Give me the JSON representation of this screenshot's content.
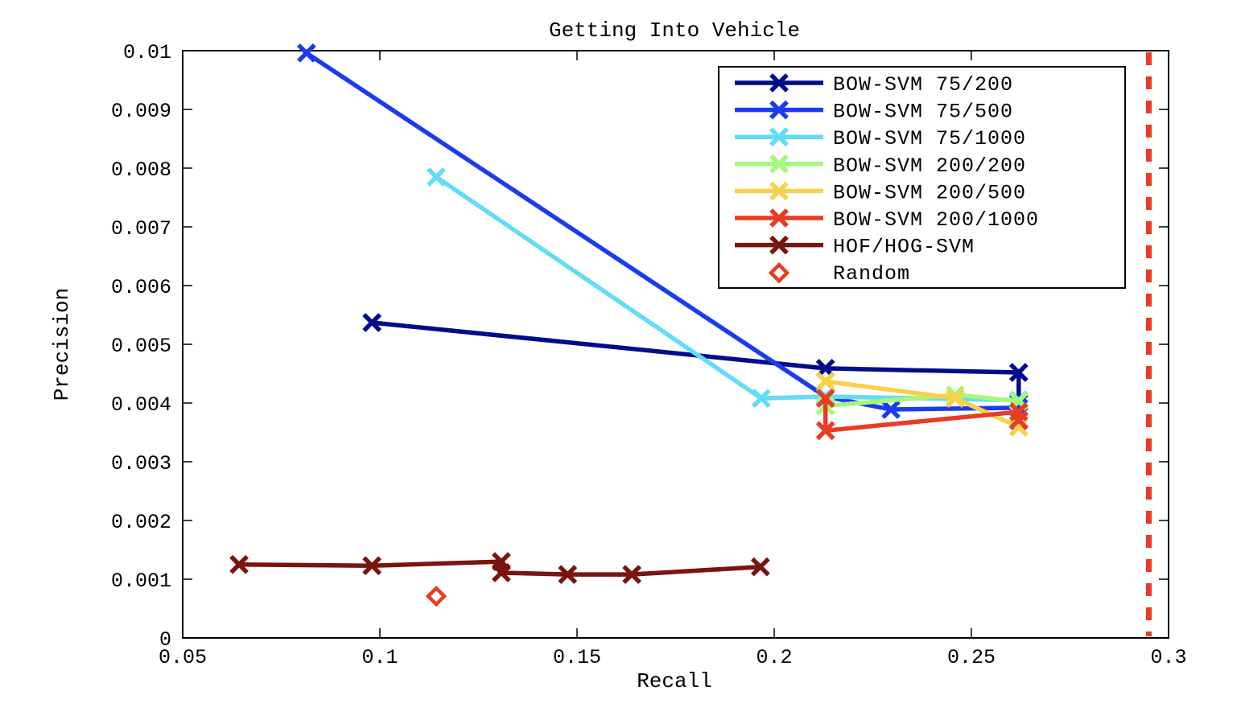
{
  "chart_data": {
    "type": "line",
    "title": "Getting Into Vehicle",
    "xlabel": "Recall",
    "ylabel": "Precision",
    "xlim": [
      0.05,
      0.3
    ],
    "ylim": [
      0,
      0.01
    ],
    "xticks": [
      0.05,
      0.1,
      0.15,
      0.2,
      0.25,
      0.3
    ],
    "xtick_labels": [
      "0.05",
      "0.1",
      "0.15",
      "0.2",
      "0.25",
      "0.3"
    ],
    "yticks": [
      0,
      0.001,
      0.002,
      0.003,
      0.004,
      0.005,
      0.006,
      0.007,
      0.008,
      0.009,
      0.01
    ],
    "ytick_labels": [
      "0",
      "0.001",
      "0.002",
      "0.003",
      "0.004",
      "0.005",
      "0.006",
      "0.007",
      "0.008",
      "0.009",
      "0.01"
    ],
    "grid": false,
    "legend_position": "top-right",
    "series": [
      {
        "name": "BOW-SVM 75/200",
        "color": "#000c8c",
        "marker": "x",
        "x": [
          0.098,
          0.213,
          0.262,
          0.262
        ],
        "y": [
          0.00537,
          0.00459,
          0.00452,
          0.00401
        ]
      },
      {
        "name": "BOW-SVM 75/500",
        "color": "#1a3cf0",
        "marker": "x",
        "x": [
          0.0814,
          0.213,
          0.2296,
          0.262,
          0.262
        ],
        "y": [
          0.00996,
          0.00411,
          0.00389,
          0.00392,
          0.0037
        ]
      },
      {
        "name": "BOW-SVM 75/1000",
        "color": "#62dcf8",
        "marker": "x",
        "x": [
          0.1143,
          0.1967,
          0.213,
          0.262
        ],
        "y": [
          0.00785,
          0.00408,
          0.00411,
          0.00405
        ]
      },
      {
        "name": "BOW-SVM 200/200",
        "color": "#a4f87a",
        "marker": "x",
        "x": [
          0.213,
          0.2459,
          0.262
        ],
        "y": [
          0.00395,
          0.00414,
          0.00403
        ]
      },
      {
        "name": "BOW-SVM 200/500",
        "color": "#f8d04a",
        "marker": "x",
        "x": [
          0.213,
          0.2459,
          0.262
        ],
        "y": [
          0.00437,
          0.00408,
          0.00359
        ]
      },
      {
        "name": "BOW-SVM 200/1000",
        "color": "#e83c24",
        "marker": "x",
        "x": [
          0.213,
          0.213,
          0.262,
          0.262
        ],
        "y": [
          0.00408,
          0.00353,
          0.00385,
          0.00371
        ]
      },
      {
        "name": "HOF/HOG-SVM",
        "color": "#7a1410",
        "marker": "x",
        "x": [
          0.0643,
          0.098,
          0.1308,
          0.1308,
          0.1476,
          0.1639,
          0.1965
        ],
        "y": [
          0.00125,
          0.00123,
          0.0013,
          0.00111,
          0.00108,
          0.00108,
          0.00121
        ]
      },
      {
        "name": "Random",
        "color": "#e83c24",
        "marker": "diamond",
        "line": false,
        "x": [
          0.1143
        ],
        "y": [
          0.00071
        ]
      }
    ],
    "reference_line": {
      "type": "vertical-dashed",
      "x": 0.295,
      "color": "#e83c24"
    }
  }
}
